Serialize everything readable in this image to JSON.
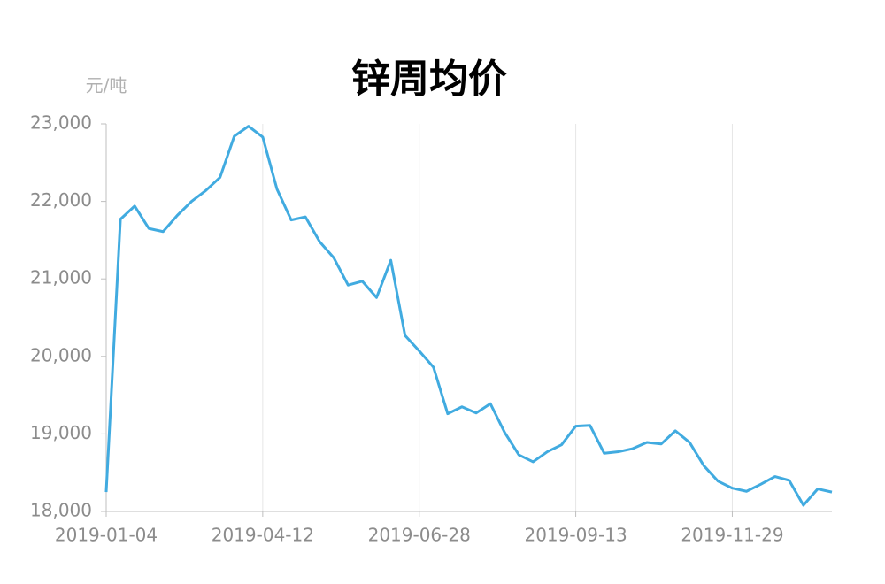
{
  "chart_data": {
    "type": "line",
    "title": "锌周均价",
    "y_unit": "元/吨",
    "categories": [
      "2019-01-04",
      null,
      null,
      null,
      null,
      null,
      null,
      null,
      null,
      null,
      null,
      "2019-04-12",
      null,
      null,
      null,
      null,
      null,
      null,
      null,
      null,
      null,
      null,
      "2019-06-28",
      null,
      null,
      null,
      null,
      null,
      null,
      null,
      null,
      null,
      null,
      "2019-09-13",
      null,
      null,
      null,
      null,
      null,
      null,
      null,
      null,
      null,
      null,
      "2019-11-29",
      null,
      null,
      null,
      null,
      null,
      null,
      null
    ],
    "series": [
      {
        "name": "锌周均价",
        "color": "#41abe0",
        "values": [
          18250,
          21770,
          21940,
          21650,
          21610,
          21820,
          22000,
          22140,
          22310,
          22840,
          22970,
          22830,
          22160,
          21760,
          21800,
          21480,
          21270,
          20920,
          20970,
          20760,
          21240,
          20270,
          20070,
          19860,
          19260,
          19350,
          19270,
          19390,
          19020,
          18730,
          18640,
          18770,
          18860,
          19100,
          19110,
          18750,
          18770,
          18810,
          18890,
          18870,
          19040,
          18890,
          18590,
          18390,
          18300,
          18260,
          18350,
          18450,
          18400,
          18080,
          18290,
          18250
        ]
      }
    ],
    "ylim": [
      18000,
      23000
    ],
    "yticks": [
      {
        "value": 18000,
        "label": "18,000"
      },
      {
        "value": 19000,
        "label": "19,000"
      },
      {
        "value": 20000,
        "label": "20,000"
      },
      {
        "value": 21000,
        "label": "21,000"
      },
      {
        "value": 22000,
        "label": "22,000"
      },
      {
        "value": 23000,
        "label": "23,000"
      }
    ],
    "grid": true
  }
}
